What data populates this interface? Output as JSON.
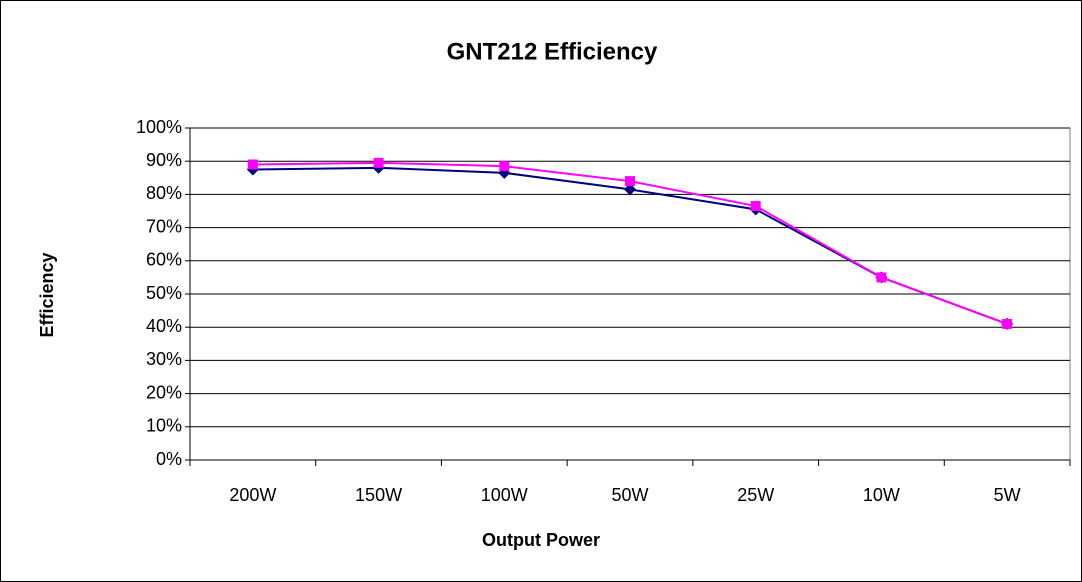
{
  "chart_data": {
    "type": "line",
    "title": "GNT212 Efficiency",
    "x_label": "Output Power",
    "y_label": "Efficiency",
    "categories": [
      "200W",
      "150W",
      "100W",
      "50W",
      "25W",
      "10W",
      "5W"
    ],
    "series": [
      {
        "color": "#000080",
        "marker": "diamond",
        "values": [
          87.5,
          88,
          86.5,
          81.5,
          75.5,
          55,
          41
        ]
      },
      {
        "color": "#ff00ff",
        "marker": "square",
        "values": [
          89,
          89.5,
          88.5,
          84,
          76.5,
          55,
          41
        ]
      }
    ],
    "ylim": [
      0,
      100
    ],
    "yticks": [
      {
        "value": 0,
        "label": "0%"
      },
      {
        "value": 10,
        "label": "10%"
      },
      {
        "value": 20,
        "label": "20%"
      },
      {
        "value": 30,
        "label": "30%"
      },
      {
        "value": 40,
        "label": "40%"
      },
      {
        "value": 50,
        "label": "50%"
      },
      {
        "value": 60,
        "label": "60%"
      },
      {
        "value": 70,
        "label": "70%"
      },
      {
        "value": 80,
        "label": "80%"
      },
      {
        "value": 90,
        "label": "90%"
      },
      {
        "value": 100,
        "label": "100%"
      }
    ],
    "grid": true
  }
}
